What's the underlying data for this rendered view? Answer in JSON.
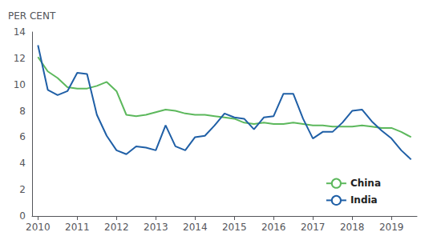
{
  "chart_data": {
    "type": "line",
    "y_label": "PER CENT",
    "x": [
      2010.0,
      2010.25,
      2010.5,
      2010.75,
      2011.0,
      2011.25,
      2011.5,
      2011.75,
      2012.0,
      2012.25,
      2012.5,
      2012.75,
      2013.0,
      2013.25,
      2013.5,
      2013.75,
      2014.0,
      2014.25,
      2014.5,
      2014.75,
      2015.0,
      2015.25,
      2015.5,
      2015.75,
      2016.0,
      2016.25,
      2016.5,
      2016.75,
      2017.0,
      2017.25,
      2017.5,
      2017.75,
      2018.0,
      2018.25,
      2018.5,
      2018.75,
      2019.0,
      2019.25,
      2019.5
    ],
    "series": [
      {
        "name": "China",
        "color": "#5cb85c",
        "values": [
          12.1,
          11.0,
          10.5,
          9.8,
          9.7,
          9.7,
          9.9,
          10.2,
          9.5,
          7.7,
          7.6,
          7.7,
          7.9,
          8.1,
          8.0,
          7.8,
          7.7,
          7.7,
          7.6,
          7.5,
          7.4,
          7.1,
          7.0,
          7.1,
          7.0,
          7.0,
          7.1,
          7.0,
          6.9,
          6.9,
          6.8,
          6.8,
          6.8,
          6.9,
          6.8,
          6.7,
          6.7,
          6.4,
          6.0
        ]
      },
      {
        "name": "India",
        "color": "#1f5fa6",
        "values": [
          13.0,
          9.6,
          9.2,
          9.5,
          10.9,
          10.8,
          7.7,
          6.1,
          5.0,
          4.7,
          5.3,
          5.2,
          5.0,
          6.9,
          5.3,
          5.0,
          6.0,
          6.1,
          6.9,
          7.8,
          7.5,
          7.4,
          6.6,
          7.5,
          7.6,
          9.3,
          9.3,
          7.4,
          5.9,
          6.4,
          6.4,
          7.1,
          8.0,
          8.1,
          7.2,
          6.5,
          5.9,
          5.0,
          4.3
        ]
      }
    ],
    "xlim": [
      2009.85,
      2019.65
    ],
    "xticks": [
      2010,
      2011,
      2012,
      2013,
      2014,
      2015,
      2016,
      2017,
      2018,
      2019
    ],
    "ylim": [
      0,
      14
    ],
    "yticks": [
      0,
      2,
      4,
      6,
      8,
      10,
      12,
      14
    ],
    "grid": false,
    "legend": "lower right"
  }
}
